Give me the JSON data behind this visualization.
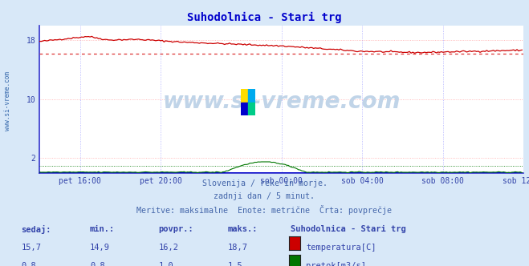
{
  "title": "Suhodolnica - Stari trg",
  "title_color": "#0000cc",
  "bg_color": "#d8e8f8",
  "plot_bg_color": "#ffffff",
  "watermark_text": "www.si-vreme.com",
  "watermark_color": "#c0d4e8",
  "grid_color": "#ffaaaa",
  "grid_color_v": "#aaaaff",
  "axis_color": "#3333cc",
  "xlabel_color": "#3344aa",
  "n_points": 288,
  "x_ticks_idx": [
    24,
    72,
    144,
    192,
    240,
    288
  ],
  "x_tick_labels": [
    "pet 16:00",
    "pet 20:00",
    "sob 00:00",
    "sob 04:00",
    "sob 08:00",
    "sob 12:00"
  ],
  "ylim": [
    0,
    20
  ],
  "y_ticks": [
    2,
    10,
    18
  ],
  "avg_temp": 16.2,
  "avg_flow": 1.0,
  "avg_line_color": "#dd3333",
  "avg_flow_color": "#007700",
  "temp_color": "#cc0000",
  "flow_color": "#007700",
  "height_color": "#0000cc",
  "footer_lines": [
    "Slovenija / reke in morje.",
    "zadnji dan / 5 minut.",
    "Meritve: maksimalne  Enote: metrične  Črta: povprečje"
  ],
  "footer_color": "#4466aa",
  "table_header": [
    "sedaj:",
    "min.:",
    "povpr.:",
    "maks.:",
    "Suhodolnica - Stari trg"
  ],
  "table_rows": [
    [
      "15,7",
      "14,9",
      "16,2",
      "18,7",
      "temperatura[C]"
    ],
    [
      "0,8",
      "0,8",
      "1,0",
      "1,5",
      "pretok[m3/s]"
    ]
  ],
  "table_color": "#3344aa",
  "legend_colors": [
    "#cc0000",
    "#007700"
  ],
  "side_label": "www.si-vreme.com",
  "side_label_color": "#3366aa"
}
